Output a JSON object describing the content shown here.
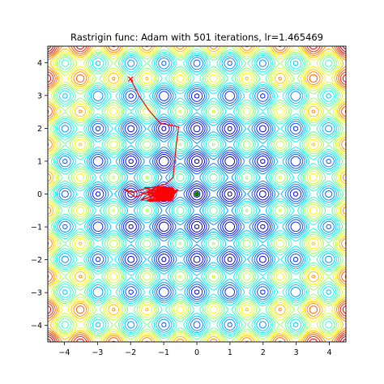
{
  "chart_data": {
    "type": "contour",
    "title": "Rastrigin func: Adam with 501 iterations, lr=1.465469",
    "xlabel": "",
    "ylabel": "",
    "xlim": [
      -4.5,
      4.5
    ],
    "ylim": [
      -4.5,
      4.5
    ],
    "x_ticks": [
      -4,
      -3,
      -2,
      -1,
      0,
      1,
      2,
      3,
      4
    ],
    "y_ticks": [
      -4,
      -3,
      -2,
      -1,
      0,
      1,
      2,
      3,
      4
    ],
    "x_tick_labels": [
      "−4",
      "−3",
      "−2",
      "−1",
      "0",
      "1",
      "2",
      "3",
      "4"
    ],
    "y_tick_labels": [
      "−4",
      "−3",
      "−2",
      "−1",
      "0",
      "1",
      "2",
      "3",
      "4"
    ],
    "colormap": "jet",
    "function": "rastrigin",
    "grid": false,
    "path_color": "#ff0000",
    "start_marker": "x",
    "minimum_color": "#008000",
    "global_minimum": {
      "x": 0,
      "y": 0
    },
    "optimizer_path": [
      {
        "x": -2.0,
        "y": 3.5
      },
      {
        "x": -1.75,
        "y": 3.0
      },
      {
        "x": -1.45,
        "y": 2.55
      },
      {
        "x": -1.1,
        "y": 2.15
      },
      {
        "x": -0.55,
        "y": 2.05
      },
      {
        "x": -0.62,
        "y": 1.5
      },
      {
        "x": -0.68,
        "y": 0.9
      },
      {
        "x": -0.72,
        "y": 0.5
      },
      {
        "x": -0.95,
        "y": 0.3
      },
      {
        "x": -1.25,
        "y": 0.22
      },
      {
        "x": -1.6,
        "y": 0.15
      },
      {
        "x": -1.95,
        "y": 0.05
      },
      {
        "x": -2.2,
        "y": 0.15
      },
      {
        "x": -1.85,
        "y": -0.1
      },
      {
        "x": -1.45,
        "y": 0.08
      },
      {
        "x": -1.2,
        "y": -0.12
      },
      {
        "x": -0.95,
        "y": 0.1
      }
    ],
    "cluster_center": {
      "x": -0.95,
      "y": 0.0
    }
  }
}
